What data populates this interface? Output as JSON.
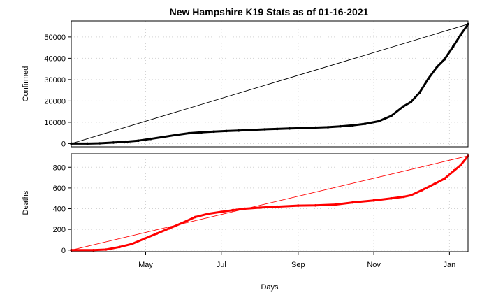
{
  "chart_data": [
    {
      "type": "scatter",
      "title": "New Hampshire K19 Stats as of 01-16-2021",
      "ylabel": "Confirmed",
      "xlabel": "",
      "xlim": [
        "2020-03-02",
        "2021-01-16"
      ],
      "ylim": [
        -1500,
        57500
      ],
      "grid": true,
      "yticks": [
        0,
        10000,
        20000,
        30000,
        40000,
        50000
      ],
      "series": [
        {
          "color": "#000000",
          "marker": "point",
          "points": [
            [
              "2020-03-02",
              0
            ],
            [
              "2020-03-15",
              20
            ],
            [
              "2020-03-25",
              150
            ],
            [
              "2020-04-05",
              500
            ],
            [
              "2020-04-15",
              900
            ],
            [
              "2020-04-25",
              1400
            ],
            [
              "2020-05-05",
              2200
            ],
            [
              "2020-05-15",
              3100
            ],
            [
              "2020-05-25",
              4000
            ],
            [
              "2020-06-05",
              4900
            ],
            [
              "2020-06-15",
              5300
            ],
            [
              "2020-06-25",
              5600
            ],
            [
              "2020-07-05",
              5900
            ],
            [
              "2020-07-15",
              6100
            ],
            [
              "2020-07-25",
              6400
            ],
            [
              "2020-08-05",
              6700
            ],
            [
              "2020-08-15",
              6900
            ],
            [
              "2020-08-25",
              7100
            ],
            [
              "2020-09-05",
              7300
            ],
            [
              "2020-09-15",
              7500
            ],
            [
              "2020-09-25",
              7700
            ],
            [
              "2020-10-05",
              8100
            ],
            [
              "2020-10-15",
              8600
            ],
            [
              "2020-10-25",
              9300
            ],
            [
              "2020-11-05",
              10500
            ],
            [
              "2020-11-15",
              13000
            ],
            [
              "2020-11-25",
              17500
            ],
            [
              "2020-12-01",
              19500
            ],
            [
              "2020-12-08",
              24000
            ],
            [
              "2020-12-15",
              30500
            ],
            [
              "2020-12-22",
              36000
            ],
            [
              "2020-12-28",
              39500
            ],
            [
              "2021-01-04",
              45500
            ],
            [
              "2021-01-10",
              51000
            ],
            [
              "2021-01-16",
              56000
            ]
          ]
        },
        {
          "color": "#000000",
          "marker": "line",
          "points": [
            [
              "2020-03-02",
              0
            ],
            [
              "2021-01-16",
              56000
            ]
          ]
        }
      ]
    },
    {
      "type": "scatter",
      "ylabel": "Deaths",
      "xlabel": "Days",
      "xlim": [
        "2020-03-02",
        "2021-01-16"
      ],
      "ylim": [
        -15,
        930
      ],
      "grid": true,
      "yticks": [
        0,
        200,
        400,
        600,
        800
      ],
      "xticks": [
        "May",
        "Jul",
        "Sep",
        "Nov",
        "Jan"
      ],
      "series": [
        {
          "color": "#ff0000",
          "marker": "point",
          "points": [
            [
              "2020-03-02",
              0
            ],
            [
              "2020-03-20",
              0
            ],
            [
              "2020-03-30",
              5
            ],
            [
              "2020-04-10",
              30
            ],
            [
              "2020-04-20",
              60
            ],
            [
              "2020-04-30",
              110
            ],
            [
              "2020-05-10",
              160
            ],
            [
              "2020-05-20",
              210
            ],
            [
              "2020-05-30",
              260
            ],
            [
              "2020-06-10",
              320
            ],
            [
              "2020-06-20",
              350
            ],
            [
              "2020-07-01",
              370
            ],
            [
              "2020-07-10",
              385
            ],
            [
              "2020-07-20",
              400
            ],
            [
              "2020-08-01",
              410
            ],
            [
              "2020-08-15",
              420
            ],
            [
              "2020-09-01",
              430
            ],
            [
              "2020-09-15",
              432
            ],
            [
              "2020-10-01",
              440
            ],
            [
              "2020-10-15",
              460
            ],
            [
              "2020-11-01",
              480
            ],
            [
              "2020-11-15",
              500
            ],
            [
              "2020-11-25",
              515
            ],
            [
              "2020-12-01",
              530
            ],
            [
              "2020-12-10",
              580
            ],
            [
              "2020-12-20",
              640
            ],
            [
              "2020-12-28",
              690
            ],
            [
              "2021-01-05",
              770
            ],
            [
              "2021-01-10",
              820
            ],
            [
              "2021-01-16",
              910
            ]
          ]
        },
        {
          "color": "#ff0000",
          "marker": "line",
          "points": [
            [
              "2020-03-02",
              0
            ],
            [
              "2021-01-16",
              910
            ]
          ]
        }
      ]
    }
  ]
}
